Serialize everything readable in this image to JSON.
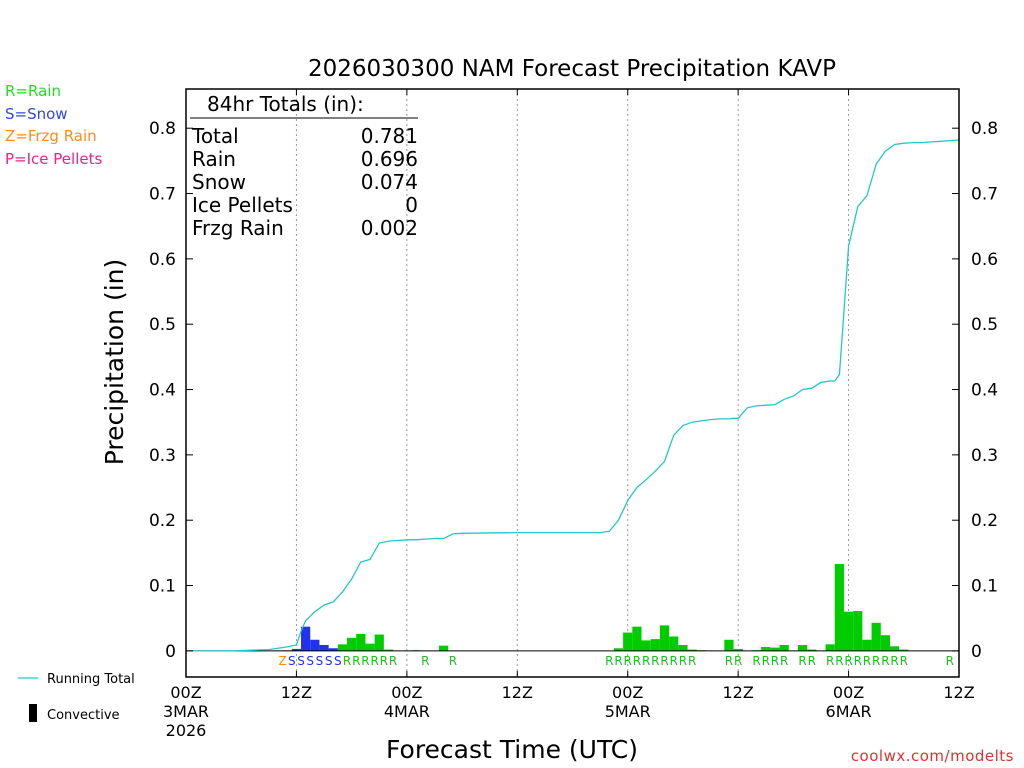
{
  "page": {
    "credit": "coolwx.com/modelts"
  },
  "legend": {
    "precip_types": [
      {
        "label": "R=Rain",
        "color": "#22dd22"
      },
      {
        "label": "S=Snow",
        "color": "#3344ee"
      },
      {
        "label": "Z=Frzg Rain",
        "color": "#ff8c1a"
      },
      {
        "label": "P=Ice Pellets",
        "color": "#ee2288"
      }
    ],
    "running_total_label": "Running Total",
    "convective_label": "Convective"
  },
  "totals_box": {
    "header": "84hr Totals (in):",
    "rows": [
      {
        "label": "Total",
        "value": "0.781"
      },
      {
        "label": "Rain",
        "value": "0.696"
      },
      {
        "label": "Snow",
        "value": "0.074"
      },
      {
        "label": "Ice Pellets",
        "value": "0"
      },
      {
        "label": "Frzg Rain",
        "value": "0.002"
      }
    ]
  },
  "colors": {
    "rain": "#00cc00",
    "snow": "#2233ee",
    "frzg": "#ff8c1a",
    "ice": "#ee2288",
    "line": "#22c8c8",
    "rain_text": "#22bb22",
    "snow_text": "#2233ee",
    "credit": "#e03030"
  },
  "chart_data": {
    "type": "bar",
    "title": "2026030300 NAM Forecast Precipitation KAVP",
    "xlabel": "Forecast Time (UTC)",
    "ylabel": "Precipitation (in)",
    "xlim": [
      0,
      84
    ],
    "ylim": [
      -0.04,
      0.86
    ],
    "yticks": [
      0,
      0.1,
      0.2,
      0.3,
      0.4,
      0.5,
      0.6,
      0.7,
      0.8
    ],
    "ytick_labels": [
      "0",
      "0.1",
      "0.2",
      "0.3",
      "0.4",
      "0.5",
      "0.6",
      "0.7",
      "0.8"
    ],
    "xticks": [
      {
        "h": 0,
        "l1": "00Z",
        "l2": "3MAR",
        "l3": "2026"
      },
      {
        "h": 12,
        "l1": "12Z",
        "l2": "",
        "l3": ""
      },
      {
        "h": 24,
        "l1": "00Z",
        "l2": "4MAR",
        "l3": ""
      },
      {
        "h": 36,
        "l1": "12Z",
        "l2": "",
        "l3": ""
      },
      {
        "h": 48,
        "l1": "00Z",
        "l2": "5MAR",
        "l3": ""
      },
      {
        "h": 60,
        "l1": "12Z",
        "l2": "",
        "l3": ""
      },
      {
        "h": 72,
        "l1": "00Z",
        "l2": "6MAR",
        "l3": ""
      },
      {
        "h": 84,
        "l1": "12Z",
        "l2": "",
        "l3": ""
      }
    ],
    "bars": [
      {
        "h": 11,
        "v": 0.001,
        "type": "frzg"
      },
      {
        "h": 12,
        "v": 0.003,
        "type": "snow"
      },
      {
        "h": 13,
        "v": 0.037,
        "type": "snow"
      },
      {
        "h": 14,
        "v": 0.017,
        "type": "snow"
      },
      {
        "h": 15,
        "v": 0.009,
        "type": "snow"
      },
      {
        "h": 16,
        "v": 0.004,
        "type": "snow"
      },
      {
        "h": 17,
        "v": 0.01,
        "type": "rain"
      },
      {
        "h": 18,
        "v": 0.02,
        "type": "rain"
      },
      {
        "h": 19,
        "v": 0.026,
        "type": "rain"
      },
      {
        "h": 20,
        "v": 0.011,
        "type": "rain"
      },
      {
        "h": 21,
        "v": 0.025,
        "type": "rain"
      },
      {
        "h": 22,
        "v": 0.002,
        "type": "rain"
      },
      {
        "h": 25,
        "v": 0.001,
        "type": "rain"
      },
      {
        "h": 28,
        "v": 0.008,
        "type": "rain"
      },
      {
        "h": 47,
        "v": 0.004,
        "type": "rain"
      },
      {
        "h": 48,
        "v": 0.028,
        "type": "rain"
      },
      {
        "h": 49,
        "v": 0.037,
        "type": "rain"
      },
      {
        "h": 50,
        "v": 0.016,
        "type": "rain"
      },
      {
        "h": 51,
        "v": 0.018,
        "type": "rain"
      },
      {
        "h": 52,
        "v": 0.039,
        "type": "rain"
      },
      {
        "h": 53,
        "v": 0.022,
        "type": "rain"
      },
      {
        "h": 54,
        "v": 0.009,
        "type": "rain"
      },
      {
        "h": 55,
        "v": 0.002,
        "type": "rain"
      },
      {
        "h": 56,
        "v": 0.001,
        "type": "rain"
      },
      {
        "h": 59,
        "v": 0.017,
        "type": "rain"
      },
      {
        "h": 60,
        "v": 0.003,
        "type": "rain"
      },
      {
        "h": 62,
        "v": 0.001,
        "type": "rain"
      },
      {
        "h": 63,
        "v": 0.006,
        "type": "rain"
      },
      {
        "h": 64,
        "v": 0.005,
        "type": "rain"
      },
      {
        "h": 65,
        "v": 0.009,
        "type": "rain"
      },
      {
        "h": 67,
        "v": 0.009,
        "type": "rain"
      },
      {
        "h": 68,
        "v": 0.002,
        "type": "rain"
      },
      {
        "h": 70,
        "v": 0.01,
        "type": "rain"
      },
      {
        "h": 71,
        "v": 0.133,
        "type": "rain"
      },
      {
        "h": 72,
        "v": 0.06,
        "type": "rain"
      },
      {
        "h": 73,
        "v": 0.061,
        "type": "rain"
      },
      {
        "h": 74,
        "v": 0.017,
        "type": "rain"
      },
      {
        "h": 75,
        "v": 0.043,
        "type": "rain"
      },
      {
        "h": 76,
        "v": 0.024,
        "type": "rain"
      },
      {
        "h": 77,
        "v": 0.007,
        "type": "rain"
      },
      {
        "h": 78,
        "v": 0.002,
        "type": "rain"
      }
    ],
    "type_letters": [
      {
        "h": 10.5,
        "text": "Z",
        "type": "frzg"
      },
      {
        "h": 11.5,
        "text": "S",
        "type": "snow"
      },
      {
        "h": 12.5,
        "text": "S",
        "type": "snow"
      },
      {
        "h": 13.5,
        "text": "S",
        "type": "snow"
      },
      {
        "h": 14.5,
        "text": "S",
        "type": "snow"
      },
      {
        "h": 15.5,
        "text": "S",
        "type": "snow"
      },
      {
        "h": 16.5,
        "text": "S",
        "type": "snow"
      },
      {
        "h": 17.5,
        "text": "R",
        "type": "rain"
      },
      {
        "h": 18.5,
        "text": "R",
        "type": "rain"
      },
      {
        "h": 19.5,
        "text": "R",
        "type": "rain"
      },
      {
        "h": 20.5,
        "text": "R",
        "type": "rain"
      },
      {
        "h": 21.5,
        "text": "R",
        "type": "rain"
      },
      {
        "h": 22.5,
        "text": "R",
        "type": "rain"
      },
      {
        "h": 26.0,
        "text": "R",
        "type": "rain"
      },
      {
        "h": 29.0,
        "text": "R",
        "type": "rain"
      },
      {
        "h": 46.0,
        "text": "R",
        "type": "rain"
      },
      {
        "h": 47.0,
        "text": "R",
        "type": "rain"
      },
      {
        "h": 48.0,
        "text": "R",
        "type": "rain"
      },
      {
        "h": 49.0,
        "text": "R",
        "type": "rain"
      },
      {
        "h": 50.0,
        "text": "R",
        "type": "rain"
      },
      {
        "h": 51.0,
        "text": "R",
        "type": "rain"
      },
      {
        "h": 52.0,
        "text": "R",
        "type": "rain"
      },
      {
        "h": 53.0,
        "text": "R",
        "type": "rain"
      },
      {
        "h": 54.0,
        "text": "R",
        "type": "rain"
      },
      {
        "h": 55.0,
        "text": "R",
        "type": "rain"
      },
      {
        "h": 59.0,
        "text": "R",
        "type": "rain"
      },
      {
        "h": 60.0,
        "text": "R",
        "type": "rain"
      },
      {
        "h": 62.0,
        "text": "R",
        "type": "rain"
      },
      {
        "h": 63.0,
        "text": "R",
        "type": "rain"
      },
      {
        "h": 64.0,
        "text": "R",
        "type": "rain"
      },
      {
        "h": 65.0,
        "text": "R",
        "type": "rain"
      },
      {
        "h": 67.0,
        "text": "R",
        "type": "rain"
      },
      {
        "h": 68.0,
        "text": "R",
        "type": "rain"
      },
      {
        "h": 70.0,
        "text": "R",
        "type": "rain"
      },
      {
        "h": 71.0,
        "text": "R",
        "type": "rain"
      },
      {
        "h": 72.0,
        "text": "R",
        "type": "rain"
      },
      {
        "h": 73.0,
        "text": "R",
        "type": "rain"
      },
      {
        "h": 74.0,
        "text": "R",
        "type": "rain"
      },
      {
        "h": 75.0,
        "text": "R",
        "type": "rain"
      },
      {
        "h": 76.0,
        "text": "R",
        "type": "rain"
      },
      {
        "h": 77.0,
        "text": "R",
        "type": "rain"
      },
      {
        "h": 78.0,
        "text": "R",
        "type": "rain"
      },
      {
        "h": 83.0,
        "text": "R",
        "type": "rain"
      }
    ],
    "running_total": {
      "x": [
        0,
        5,
        9,
        11,
        12,
        12.5,
        13,
        14,
        15,
        16,
        17,
        18,
        19,
        20,
        21,
        22,
        23,
        24,
        25,
        26,
        27,
        28,
        29,
        30,
        36,
        45,
        46,
        47,
        48,
        49,
        50,
        51,
        52,
        53,
        54,
        55,
        56,
        57,
        58,
        59,
        59.5,
        60,
        61,
        62,
        63,
        64,
        65,
        66,
        67,
        68,
        69,
        70,
        70.5,
        71,
        71.5,
        72,
        73,
        74,
        75,
        76,
        77,
        78,
        79,
        80,
        81,
        82,
        83,
        84
      ],
      "y": [
        0,
        0,
        0.002,
        0.006,
        0.009,
        0.03,
        0.046,
        0.06,
        0.07,
        0.075,
        0.09,
        0.11,
        0.136,
        0.14,
        0.165,
        0.168,
        0.169,
        0.17,
        0.17,
        0.171,
        0.172,
        0.172,
        0.179,
        0.18,
        0.181,
        0.181,
        0.183,
        0.2,
        0.23,
        0.25,
        0.262,
        0.275,
        0.29,
        0.33,
        0.345,
        0.35,
        0.352,
        0.354,
        0.355,
        0.355,
        0.356,
        0.356,
        0.372,
        0.375,
        0.376,
        0.377,
        0.385,
        0.39,
        0.4,
        0.402,
        0.411,
        0.413,
        0.413,
        0.423,
        0.52,
        0.62,
        0.68,
        0.697,
        0.745,
        0.765,
        0.775,
        0.777,
        0.778,
        0.778,
        0.779,
        0.78,
        0.781,
        0.782
      ]
    }
  }
}
